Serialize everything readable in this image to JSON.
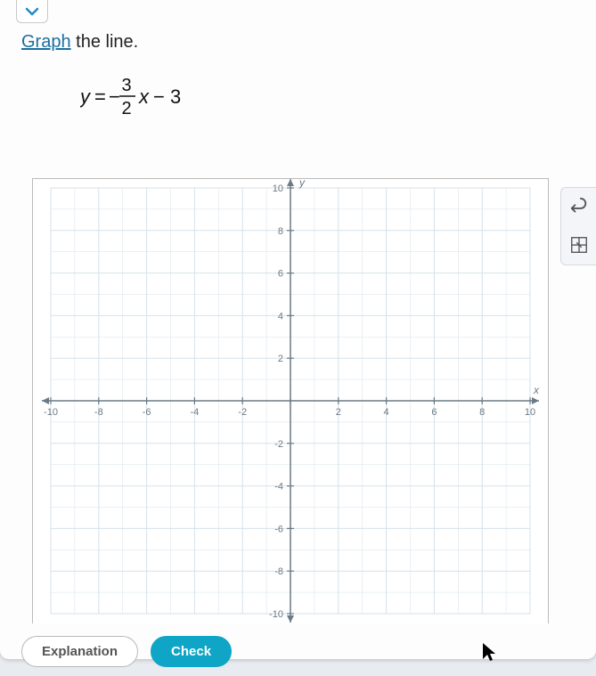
{
  "prompt": {
    "link_word": "Graph",
    "rest": " the line."
  },
  "equation": {
    "lhs": "y",
    "eq": "=",
    "neg": "−",
    "num": "3",
    "den": "2",
    "var": "x",
    "tail": "− 3",
    "font_size": 22,
    "color": "#111111"
  },
  "graph": {
    "type": "cartesian-grid",
    "xlim": [
      -10,
      10
    ],
    "ylim": [
      -10,
      10
    ],
    "xtick_step": 2,
    "ytick_step": 2,
    "x_labels": [
      "-10",
      "-8",
      "-6",
      "-4",
      "-2",
      "",
      "2",
      "4",
      "6",
      "8",
      "10"
    ],
    "y_labels_pos": [
      "2",
      "4",
      "6",
      "8",
      "10"
    ],
    "y_labels_neg": [
      "-2",
      "-4",
      "-6",
      "-8",
      "-10"
    ],
    "x_axis_label": "x",
    "y_axis_label": "y",
    "grid_color": "#d6e2ea",
    "axis_color": "#6a7a86",
    "tick_color": "#6a7a86",
    "label_color": "#6a7a86",
    "label_fontsize": 11,
    "background_color": "#ffffff",
    "minor_grid": true
  },
  "buttons": {
    "explanation": "Explanation",
    "check": "Check"
  },
  "toolbar": {
    "undo_title": "Undo",
    "grid_tool_title": "Grid tool"
  },
  "colors": {
    "card_bg": "#fdfdfd",
    "page_bg": "#e8ebef",
    "link": "#1a6fa0",
    "check_btn": "#0ea5c6"
  }
}
